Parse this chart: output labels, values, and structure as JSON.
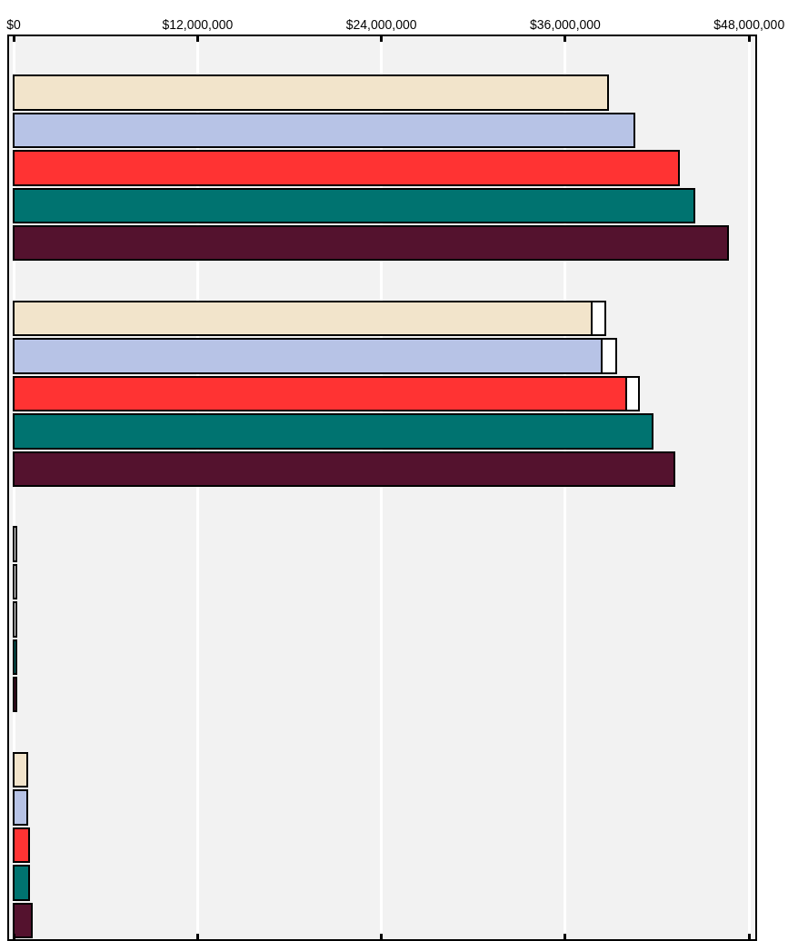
{
  "chart_data": {
    "type": "bar",
    "orientation": "horizontal",
    "stacked": true,
    "categories": [
      null,
      null,
      null,
      null,
      null,
      null,
      null,
      null,
      null,
      null,
      null,
      null,
      null,
      null,
      null,
      null,
      null,
      null,
      null,
      null,
      null,
      null,
      null,
      null
    ],
    "series": [
      {
        "colors": [
          "#f2e4cb",
          "#f2e4cb",
          "#b7c3e6",
          "#ff3333",
          "#007370",
          "#54122e",
          "#f2e4cb",
          "#f2e4cb",
          "#b7c3e6",
          "#ff3333",
          "#007370",
          "#54122e",
          "#f2e4cb",
          "#f2e4cb",
          "#b7c3e6",
          "#ff3333",
          "#007370",
          "#54122e",
          "#f2e4cb",
          "#f2e4cb",
          "#b7c3e6",
          "#ff3333",
          "#007370",
          "#54122e"
        ],
        "values": [
          null,
          38800000,
          40500000,
          43400000,
          44400000,
          46600000,
          null,
          37700000,
          38400000,
          40000000,
          41700000,
          43100000,
          null,
          null,
          null,
          null,
          200000,
          200000,
          null,
          900000,
          900000,
          1000000,
          1000000,
          1200000
        ]
      },
      {
        "color": "#ffffff",
        "values": [
          null,
          null,
          null,
          null,
          null,
          null,
          null,
          900000,
          900000,
          800000,
          null,
          null,
          null,
          200000,
          200000,
          200000,
          null,
          null,
          null,
          null,
          null,
          null,
          null,
          null
        ]
      }
    ],
    "xlim": [
      -300000,
      48400000
    ],
    "xticks": [
      {
        "value": 0,
        "label": "$0"
      },
      {
        "value": 12000000,
        "label": "$12,000,000"
      },
      {
        "value": 24000000,
        "label": "$24,000,000"
      },
      {
        "value": 36000000,
        "label": "$36,000,000"
      },
      {
        "value": 48000000,
        "label": "$48,000,000"
      }
    ],
    "grid": "x",
    "tick_labels": "x"
  }
}
